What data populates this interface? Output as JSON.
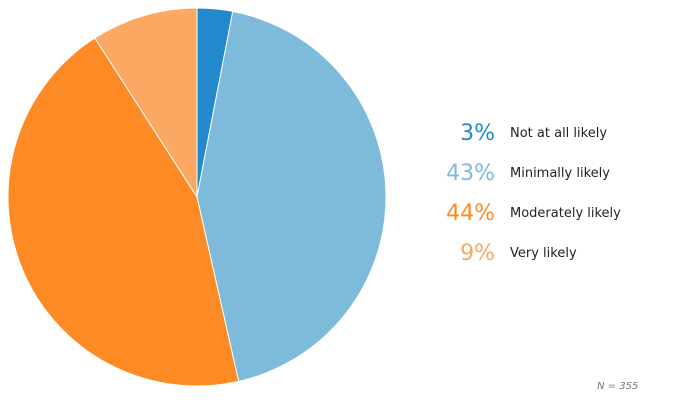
{
  "chart_data": {
    "type": "pie",
    "slices": [
      {
        "label": "Not at all likely",
        "value": 3,
        "display": "3%",
        "color": "#2289cd"
      },
      {
        "label": "Minimally likely",
        "value": 43,
        "display": "43%",
        "color": "#7ebad9"
      },
      {
        "label": "Moderately likely",
        "value": 44,
        "display": "44%",
        "color": "#fe8a26"
      },
      {
        "label": "Very likely",
        "value": 9,
        "display": "9%",
        "color": "#fba862"
      }
    ],
    "legend_position": "right",
    "footnote": "N = 355"
  }
}
